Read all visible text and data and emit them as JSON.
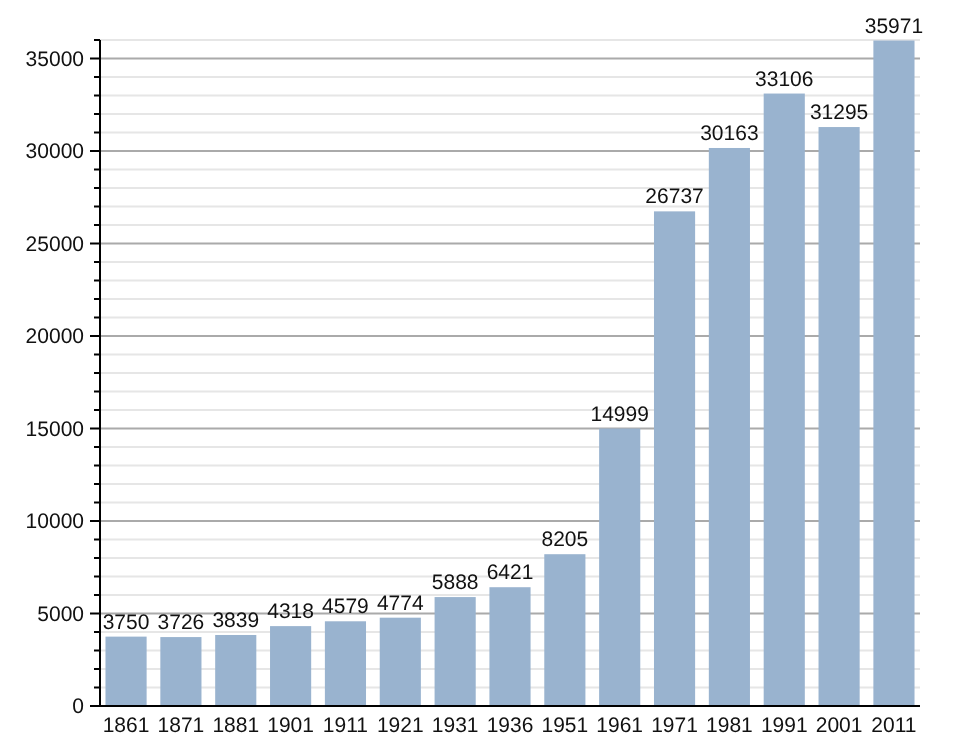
{
  "chart_data": {
    "type": "bar",
    "categories": [
      "1861",
      "1871",
      "1881",
      "1901",
      "1911",
      "1921",
      "1931",
      "1936",
      "1951",
      "1961",
      "1971",
      "1981",
      "1991",
      "2001",
      "2011"
    ],
    "values": [
      3750,
      3726,
      3839,
      4318,
      4579,
      4774,
      5888,
      6421,
      8205,
      14999,
      26737,
      30163,
      33106,
      31295,
      35971
    ],
    "color": "#99b3cf",
    "data_labels": true,
    "grid": "y",
    "ylim": [
      0,
      36000
    ],
    "yticks": [
      0,
      {
        "value": 1000,
        "label": null
      },
      {
        "value": 2000,
        "label": null
      },
      {
        "value": 3000,
        "label": null
      },
      {
        "value": 4000,
        "label": null
      },
      5000,
      {
        "value": 6000,
        "label": null
      },
      {
        "value": 7000,
        "label": null
      },
      {
        "value": 8000,
        "label": null
      },
      {
        "value": 9000,
        "label": null
      },
      10000,
      {
        "value": 11000,
        "label": null
      },
      {
        "value": 12000,
        "label": null
      },
      {
        "value": 13000,
        "label": null
      },
      {
        "value": 14000,
        "label": null
      },
      15000,
      {
        "value": 16000,
        "label": null
      },
      {
        "value": 17000,
        "label": null
      },
      {
        "value": 18000,
        "label": null
      },
      {
        "value": 19000,
        "label": null
      },
      20000,
      {
        "value": 21000,
        "label": null
      },
      {
        "value": 22000,
        "label": null
      },
      {
        "value": 23000,
        "label": null
      },
      {
        "value": 24000,
        "label": null
      },
      25000,
      {
        "value": 26000,
        "label": null
      },
      {
        "value": 27000,
        "label": null
      },
      {
        "value": 28000,
        "label": null
      },
      {
        "value": 29000,
        "label": null
      },
      30000,
      {
        "value": 31000,
        "label": null
      },
      {
        "value": 32000,
        "label": null
      },
      {
        "value": 33000,
        "label": null
      },
      {
        "value": 34000,
        "label": null
      },
      35000,
      {
        "value": 36000,
        "label": null
      }
    ]
  }
}
